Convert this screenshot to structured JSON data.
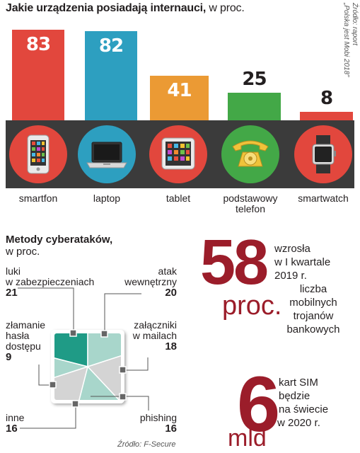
{
  "header": {
    "title_bold": "Jakie urządzenia posiadają internauci,",
    "title_rest": " w proc.",
    "source_line1": "Źródło: raport",
    "source_line2": "„Polska jest Mobi 2018”"
  },
  "chart_data": [
    {
      "type": "bar",
      "title": "Jakie urządzenia posiadają internauci, w proc.",
      "categories": [
        "smartfon",
        "laptop",
        "tablet",
        "podstawowy telefon",
        "smartwatch"
      ],
      "values": [
        83,
        82,
        41,
        25,
        8
      ],
      "colors": [
        "#e2473d",
        "#2d9fc0",
        "#eb9a34",
        "#43a847",
        "#e2473d"
      ],
      "icons": [
        "smartphone-icon",
        "laptop-icon",
        "tablet-icon",
        "rotary-phone-icon",
        "smartwatch-icon"
      ],
      "circle_colors": [
        "#e2473d",
        "#2d9fc0",
        "#e2473d",
        "#43a847",
        "#e2473d"
      ]
    },
    {
      "type": "pie",
      "title": "Metody cyberataków, w proc.",
      "categories": [
        "luki w zabezpieczeniach",
        "atak wewnętrzny",
        "załączniki w mailach",
        "phishing",
        "inne",
        "złamanie hasła dostępu"
      ],
      "values": [
        21,
        20,
        18,
        16,
        16,
        9
      ],
      "colors": [
        "#1f9b86",
        "#a8d6cb",
        "#d4d4d4",
        "#a8d6cb",
        "#d4d4d4",
        "#a8d6cb"
      ]
    }
  ],
  "devices": {
    "labels": [
      "smartfon",
      "laptop",
      "tablet",
      "podstawowy",
      "smartwatch"
    ],
    "label2": "telefon"
  },
  "cyber": {
    "title_bold": "Metody cyberataków,",
    "subtitle": "w proc.",
    "luki_1": "luki",
    "luki_2": "w zabezpieczeniach",
    "luki_val": "21",
    "atak_1": "atak",
    "atak_2": "wewnętrzny",
    "atak_val": "20",
    "zal_1": "załączniki",
    "zal_2": "w mailach",
    "zal_val": "18",
    "phishing": "phishing",
    "phishing_val": "16",
    "inne": "inne",
    "inne_val": "16",
    "haslo_1": "złamanie",
    "haslo_2": "hasła",
    "haslo_3": "dostępu",
    "haslo_val": "9",
    "source": "Źródło: F-Secure"
  },
  "facts": {
    "f1_number": "58",
    "f1_unit": "proc.",
    "f1_lines": [
      "wzrosła",
      "w I kwartale",
      "2019 r.",
      "liczba",
      "mobilnych",
      "trojanów",
      "bankowych"
    ],
    "f2_number": "6",
    "f2_unit": "mld",
    "f2_lines": [
      "kart SIM",
      "będzie",
      "na świecie",
      "w 2020 r."
    ]
  }
}
